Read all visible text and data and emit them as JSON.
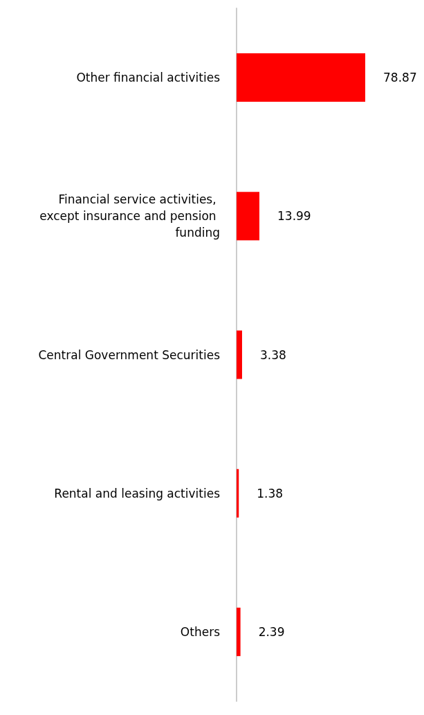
{
  "chart_data": {
    "type": "bar",
    "orientation": "horizontal",
    "categories": [
      "Other financial activities",
      "Financial service activities, except insurance and pension funding",
      "Central Government Securities",
      "Rental and leasing activities",
      "Others"
    ],
    "values": [
      78.87,
      13.99,
      3.38,
      1.38,
      2.39
    ],
    "color": "#ff0000",
    "data_labels": true
  }
}
